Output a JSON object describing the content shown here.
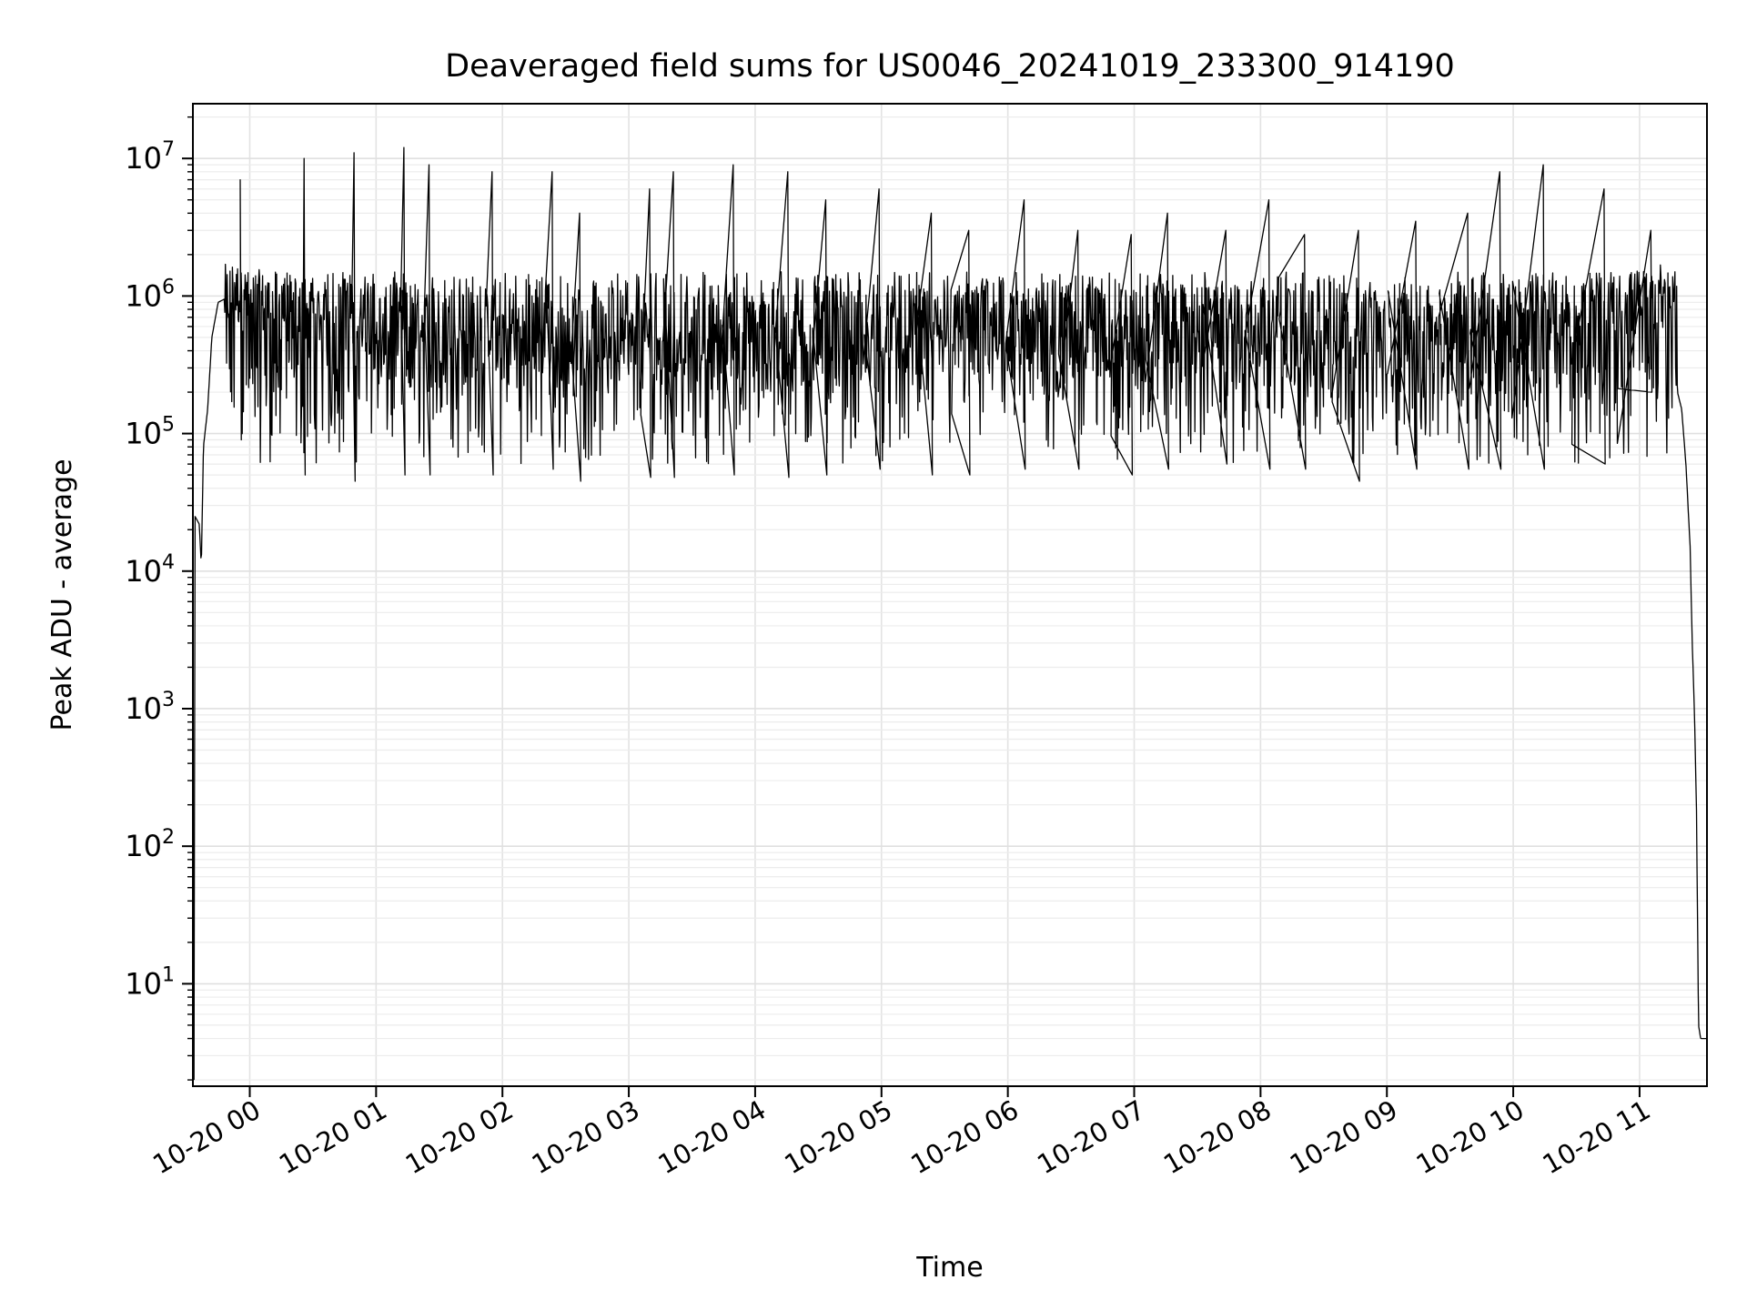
{
  "chart_data": {
    "type": "line",
    "title": "Deaveraged field sums for US0046_20241019_233300_914190",
    "xlabel": "Time",
    "ylabel": "Peak ADU - average",
    "y_scale": "log",
    "ylim": [
      1.8,
      25000000
    ],
    "xlim": [
      "2024-10-19 23:33",
      "2024-10-20 11:32"
    ],
    "x_ticks": [
      "2024-10-20 00:00",
      "2024-10-20 01:00",
      "2024-10-20 02:00",
      "2024-10-20 03:00",
      "2024-10-20 04:00",
      "2024-10-20 05:00",
      "2024-10-20 06:00",
      "2024-10-20 07:00",
      "2024-10-20 08:00",
      "2024-10-20 09:00",
      "2024-10-20 10:00",
      "2024-10-20 11:00"
    ],
    "x_tick_labels": [
      "10-20 00",
      "10-20 01",
      "10-20 02",
      "10-20 03",
      "10-20 04",
      "10-20 05",
      "10-20 06",
      "10-20 07",
      "10-20 08",
      "10-20 09",
      "10-20 10",
      "10-20 11"
    ],
    "y_ticks": [
      10,
      100,
      1000,
      10000,
      100000,
      1000000,
      10000000
    ],
    "y_tick_labels": [
      {
        "base": "10",
        "exp": "1"
      },
      {
        "base": "10",
        "exp": "2"
      },
      {
        "base": "10",
        "exp": "3"
      },
      {
        "base": "10",
        "exp": "4"
      },
      {
        "base": "10",
        "exp": "5"
      },
      {
        "base": "10",
        "exp": "6"
      },
      {
        "base": "10",
        "exp": "7"
      }
    ],
    "grid": true,
    "line_color": "#000000",
    "series": [
      {
        "x": [
          "2024-10-19 23:33:30",
          "2024-10-19 23:34:00",
          "2024-10-19 23:36:00",
          "2024-10-19 23:37:00",
          "2024-10-19 23:38:00",
          "2024-10-19 23:40:00",
          "2024-10-19 23:42:00",
          "2024-10-19 23:45:00",
          "2024-10-19 23:48:00",
          "2024-10-19 23:50:00",
          "2024-10-19 23:53:00",
          "2024-10-19 23:56:00",
          "2024-10-20 00:00:00",
          "2024-10-20 00:10:00",
          "2024-10-20 00:20:00",
          "2024-10-20 00:30:00",
          "2024-10-20 00:40:00",
          "2024-10-20 00:50:00",
          "2024-10-20 01:00:00",
          "2024-10-20 01:30:00",
          "2024-10-20 02:00:00",
          "2024-10-20 03:00:00",
          "2024-10-20 04:00:00",
          "2024-10-20 05:00:00",
          "2024-10-20 06:00:00",
          "2024-10-20 07:00:00",
          "2024-10-20 08:00:00",
          "2024-10-20 09:00:00",
          "2024-10-20 10:00:00",
          "2024-10-20 10:40:00",
          "2024-10-20 11:00:00",
          "2024-10-20 11:10:00",
          "2024-10-20 11:16:00",
          "2024-10-20 11:18:00",
          "2024-10-20 11:20:00",
          "2024-10-20 11:22:00",
          "2024-10-20 11:24:00",
          "2024-10-20 11:25:00",
          "2024-10-20 11:26:00",
          "2024-10-20 11:27:00",
          "2024-10-20 11:28:00",
          "2024-10-20 11:29:00",
          "2024-10-20 11:30:00",
          "2024-10-20 11:31:00",
          "2024-10-20 11:32:00"
        ],
        "y": [
          2,
          25000,
          22000,
          11000,
          80000,
          150000,
          500000,
          900000,
          950000,
          1000000,
          1100000,
          1000000,
          900000,
          850000,
          800000,
          750000,
          700000,
          700000,
          650000,
          650000,
          600000,
          550000,
          600000,
          620000,
          650000,
          700000,
          650000,
          650000,
          700000,
          750000,
          900000,
          1000000,
          1100000,
          200000,
          150000,
          60000,
          15000,
          3000,
          1000,
          200,
          5,
          4,
          4,
          4,
          4
        ]
      }
    ],
    "spikes": {
      "count": 30,
      "max": [
        7000000,
        10000000,
        11000000,
        12000000,
        9000000,
        8000000,
        8000000,
        4000000,
        6000000,
        8000000,
        9000000,
        8000000,
        5000000,
        6000000,
        4000000,
        3000000,
        5000000,
        3000000,
        2800000,
        4000000,
        3000000,
        5000000,
        2800000,
        3000000,
        3500000,
        4000000,
        8000000,
        9000000,
        6000000,
        3000000
      ],
      "min": [
        90000,
        50000,
        45000,
        50000,
        50000,
        50000,
        55000,
        45000,
        48000,
        48000,
        50000,
        48000,
        50000,
        55000,
        50000,
        50000,
        55000,
        55000,
        50000,
        55000,
        60000,
        55000,
        55000,
        45000,
        55000,
        55000,
        55000,
        55000,
        60000,
        200000
      ]
    }
  }
}
